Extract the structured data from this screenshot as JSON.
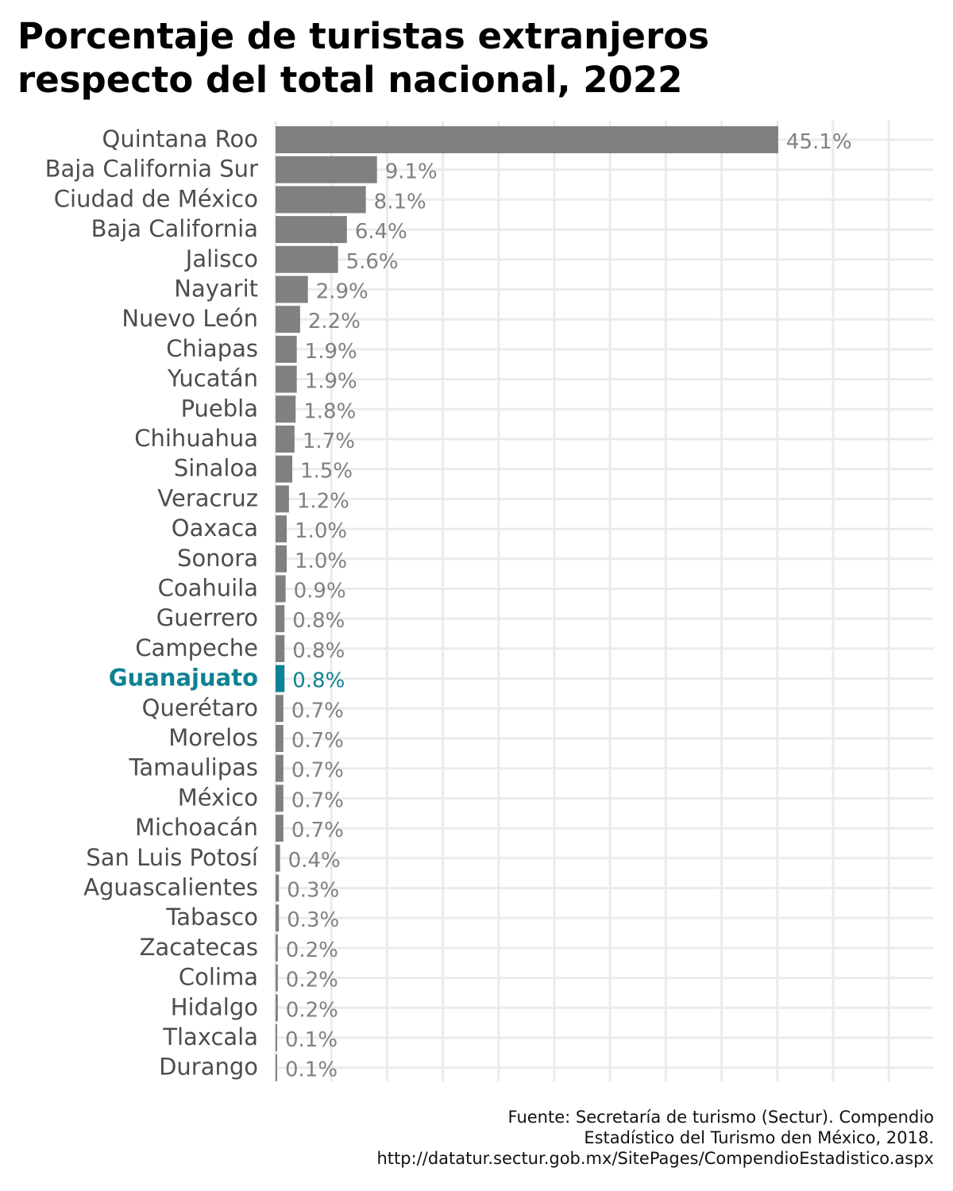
{
  "title_lines": [
    "Porcentaje de turistas extranjeros",
    "respecto del total nacional, 2022"
  ],
  "source_lines": [
    "Fuente: Secretaría de turismo (Sectur). Compendio",
    "Estadístico del Turismo den México, 2018.",
    "http://datatur.sectur.gob.mx/SitePages/CompendioEstadistico.aspx"
  ],
  "colors": {
    "bar": "#808080",
    "highlight": "#0e8193",
    "label": "#4d4d4d",
    "value_label": "#808080",
    "grid": "#ebebeb"
  },
  "chart_data": {
    "type": "bar",
    "orientation": "horizontal",
    "title": "Porcentaje de turistas extranjeros respecto del total nacional, 2022",
    "xlabel": "",
    "ylabel": "",
    "unit": "%",
    "xlim": [
      0,
      59
    ],
    "grid": true,
    "highlight": "Guanajuato",
    "categories": [
      "Quintana Roo",
      "Baja California Sur",
      "Ciudad de México",
      "Baja California",
      "Jalisco",
      "Nayarit",
      "Nuevo León",
      "Chiapas",
      "Yucatán",
      "Puebla",
      "Chihuahua",
      "Sinaloa",
      "Veracruz",
      "Oaxaca",
      "Sonora",
      "Coahuila",
      "Guerrero",
      "Campeche",
      "Guanajuato",
      "Querétaro",
      "Morelos",
      "Tamaulipas",
      "México",
      "Michoacán",
      "San Luis Potosí",
      "Aguascalientes",
      "Tabasco",
      "Zacatecas",
      "Colima",
      "Hidalgo",
      "Tlaxcala",
      "Durango"
    ],
    "values": [
      45.1,
      9.1,
      8.1,
      6.4,
      5.6,
      2.9,
      2.2,
      1.9,
      1.9,
      1.8,
      1.7,
      1.5,
      1.2,
      1.0,
      1.0,
      0.9,
      0.8,
      0.8,
      0.8,
      0.7,
      0.7,
      0.7,
      0.7,
      0.7,
      0.4,
      0.3,
      0.3,
      0.2,
      0.2,
      0.2,
      0.1,
      0.1
    ],
    "value_labels": [
      "45.1%",
      "9.1%",
      "8.1%",
      "6.4%",
      "5.6%",
      "2.9%",
      "2.2%",
      "1.9%",
      "1.9%",
      "1.8%",
      "1.7%",
      "1.5%",
      "1.2%",
      "1.0%",
      "1.0%",
      "0.9%",
      "0.8%",
      "0.8%",
      "0.8%",
      "0.7%",
      "0.7%",
      "0.7%",
      "0.7%",
      "0.7%",
      "0.4%",
      "0.3%",
      "0.3%",
      "0.2%",
      "0.2%",
      "0.2%",
      "0.1%",
      "0.1%"
    ]
  }
}
